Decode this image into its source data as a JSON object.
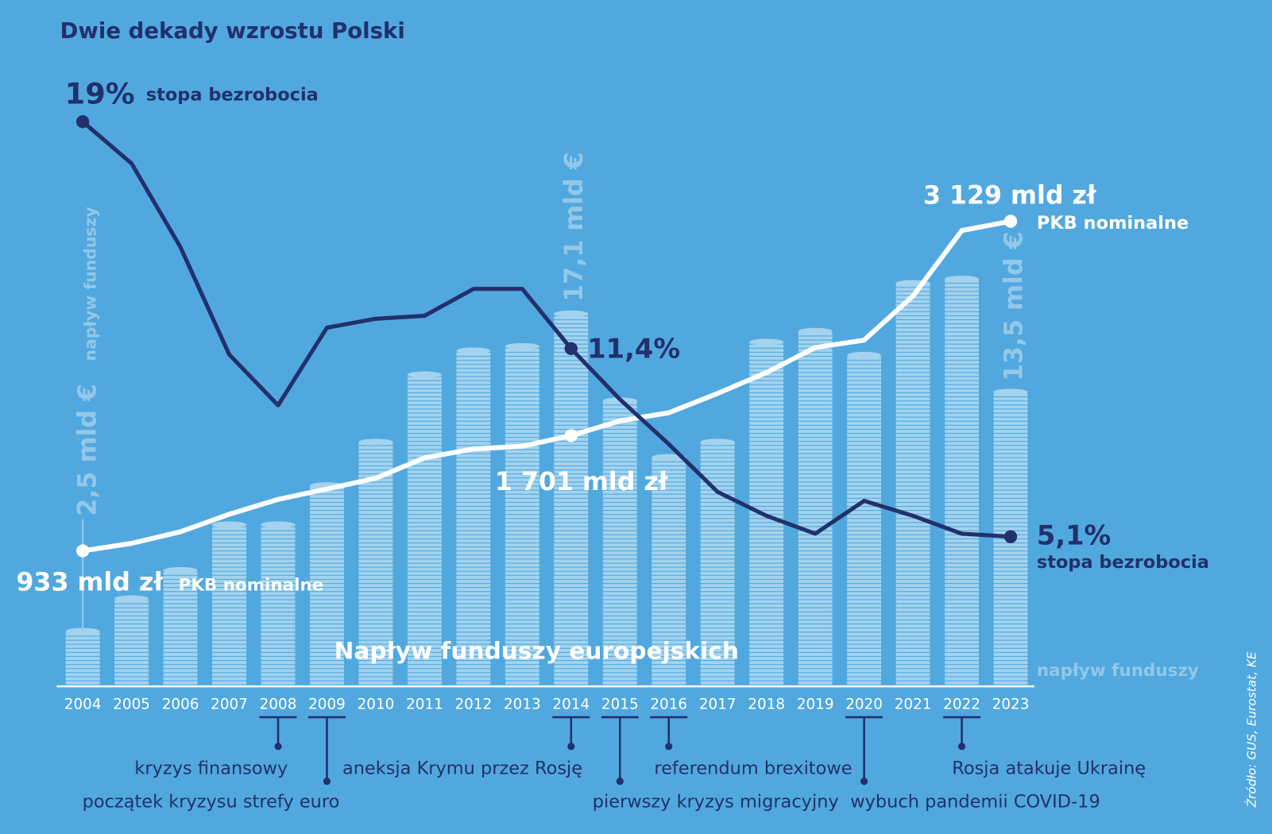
{
  "colors": {
    "background": "#51a8df",
    "navy": "#22306b",
    "white": "#ffffff",
    "coin": "#a3d3ee",
    "faded": "#93c8e8"
  },
  "chart_data": {
    "type": "bar+line",
    "title": "Dwie dekady wzrostu Polski",
    "subtitle": "Napływ funduszy europejskich",
    "source": "Źródło: GUS, Eurostat, KE",
    "categories": [
      "2004",
      "2005",
      "2006",
      "2007",
      "2008",
      "2009",
      "2010",
      "2011",
      "2012",
      "2013",
      "2014",
      "2015",
      "2016",
      "2017",
      "2018",
      "2019",
      "2020",
      "2021",
      "2022",
      "2023"
    ],
    "series": [
      {
        "name": "napływ funduszy",
        "unit": "mld €",
        "type": "bar",
        "values": [
          2.5,
          4.0,
          5.3,
          7.4,
          7.4,
          9.2,
          11.2,
          14.3,
          15.4,
          15.6,
          17.1,
          13.1,
          10.5,
          11.2,
          15.8,
          16.3,
          15.2,
          18.5,
          18.7,
          13.5
        ]
      },
      {
        "name": "stopa bezrobocia",
        "unit": "%",
        "type": "line",
        "values": [
          19.0,
          17.6,
          14.8,
          11.2,
          9.5,
          12.1,
          12.4,
          12.5,
          13.4,
          13.4,
          11.4,
          9.7,
          8.2,
          6.6,
          5.8,
          5.2,
          6.3,
          5.8,
          5.2,
          5.1
        ]
      },
      {
        "name": "PKB nominalne",
        "unit": "mld zł",
        "type": "line",
        "values": [
          933,
          983,
          1060,
          1177,
          1276,
          1345,
          1417,
          1553,
          1612,
          1630,
          1701,
          1799,
          1853,
          1982,
          2121,
          2288,
          2337,
          2631,
          3067,
          3129
        ]
      }
    ],
    "labels": {
      "unemp_start_value": "19%",
      "unemp_start_label": "stopa bezrobocia",
      "unemp_mid_value": "11,4%",
      "unemp_end_value": "5,1%",
      "unemp_end_label": "stopa bezrobocia",
      "gdp_start_value": "933 mld zł",
      "gdp_start_label": "PKB  nominalne",
      "gdp_mid_value": "1 701 mld zł",
      "gdp_end_value": "3 129 mld zł",
      "gdp_end_label": "PKB  nominalne",
      "funds_start_value": "2,5 mld €",
      "funds_start_label": "napływ funduszy",
      "funds_mid_value": "17,1 mld €",
      "funds_end_value": "13,5 mld €",
      "funds_end_label": "napływ funduszy"
    },
    "events": [
      {
        "year": "2008",
        "label": "kryzys finansowy",
        "level": "short"
      },
      {
        "year": "2009",
        "label": "początek kryzysu strefy euro",
        "level": "long"
      },
      {
        "year": "2014",
        "label": "aneksja Krymu przez Rosję",
        "level": "short"
      },
      {
        "year": "2015",
        "label": "pierwszy kryzys migracyjny",
        "level": "long"
      },
      {
        "year": "2016",
        "label": "referendum brexitowe",
        "level": "short"
      },
      {
        "year": "2020",
        "label": "wybuch pandemii COVID-19",
        "level": "long"
      },
      {
        "year": "2022",
        "label": "Rosja atakuje Ukrainę",
        "level": "short"
      }
    ]
  }
}
